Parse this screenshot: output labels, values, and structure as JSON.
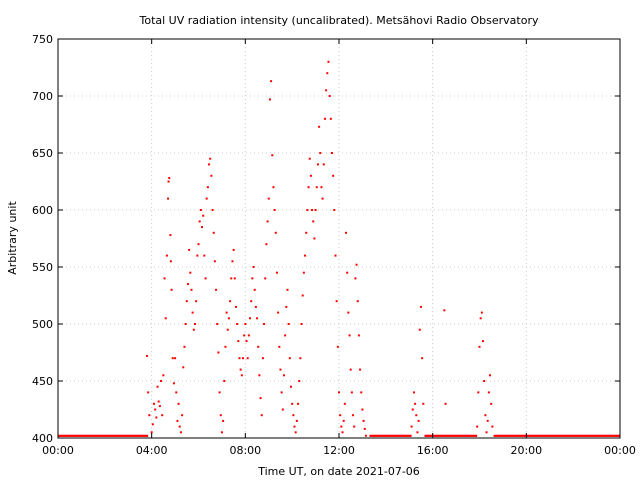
{
  "chart_data": {
    "type": "scatter",
    "title": "Total UV radiation intensity (uncalibrated). Metsähovi Radio Observatory",
    "xlabel": "Time UT, on date 2021-07-06",
    "ylabel": "Arbitrary unit",
    "xlim": [
      0,
      24
    ],
    "ylim": [
      400,
      750
    ],
    "x_unit": "hours UT",
    "x_ticks": [
      0,
      4,
      8,
      12,
      16,
      20,
      24
    ],
    "x_tick_labels": [
      "00:00",
      "04:00",
      "08:00",
      "12:00",
      "16:00",
      "20:00",
      "00:00"
    ],
    "y_ticks": [
      400,
      450,
      500,
      550,
      600,
      650,
      700,
      750
    ],
    "y_tick_labels": [
      "400",
      "450",
      "500",
      "550",
      "600",
      "650",
      "700",
      "750"
    ],
    "grid": true,
    "marker_color": "#ff0000",
    "baseline_value": 402,
    "baseline_segments": [
      [
        0,
        3.85
      ],
      [
        13.3,
        15.1
      ],
      [
        15.65,
        17.9
      ],
      [
        18.6,
        24
      ]
    ],
    "series": [
      {
        "name": "",
        "points": [
          [
            3.8,
            472
          ],
          [
            3.85,
            440
          ],
          [
            3.9,
            420
          ],
          [
            4.0,
            405
          ],
          [
            4.05,
            412
          ],
          [
            4.1,
            430
          ],
          [
            4.15,
            425
          ],
          [
            4.2,
            418
          ],
          [
            4.25,
            445
          ],
          [
            4.3,
            432
          ],
          [
            4.35,
            428
          ],
          [
            4.4,
            450
          ],
          [
            4.45,
            420
          ],
          [
            4.5,
            455
          ],
          [
            4.55,
            540
          ],
          [
            4.6,
            505
          ],
          [
            4.65,
            560
          ],
          [
            4.7,
            610
          ],
          [
            4.72,
            625
          ],
          [
            4.75,
            628
          ],
          [
            4.8,
            578
          ],
          [
            4.82,
            555
          ],
          [
            4.85,
            530
          ],
          [
            4.9,
            470
          ],
          [
            4.95,
            448
          ],
          [
            5.0,
            470
          ],
          [
            5.05,
            440
          ],
          [
            5.1,
            415
          ],
          [
            5.15,
            430
          ],
          [
            5.2,
            410
          ],
          [
            5.25,
            405
          ],
          [
            5.3,
            420
          ],
          [
            5.35,
            462
          ],
          [
            5.4,
            480
          ],
          [
            5.45,
            500
          ],
          [
            5.5,
            520
          ],
          [
            5.55,
            535
          ],
          [
            5.6,
            565
          ],
          [
            5.65,
            545
          ],
          [
            5.7,
            530
          ],
          [
            5.75,
            510
          ],
          [
            5.8,
            495
          ],
          [
            5.85,
            500
          ],
          [
            5.9,
            520
          ],
          [
            5.95,
            560
          ],
          [
            6.0,
            570
          ],
          [
            6.05,
            590
          ],
          [
            6.1,
            600
          ],
          [
            6.15,
            585
          ],
          [
            6.2,
            595
          ],
          [
            6.25,
            560
          ],
          [
            6.3,
            540
          ],
          [
            6.35,
            610
          ],
          [
            6.4,
            620
          ],
          [
            6.45,
            640
          ],
          [
            6.5,
            645
          ],
          [
            6.55,
            630
          ],
          [
            6.6,
            600
          ],
          [
            6.65,
            580
          ],
          [
            6.7,
            555
          ],
          [
            6.75,
            530
          ],
          [
            6.8,
            500
          ],
          [
            6.85,
            475
          ],
          [
            6.9,
            440
          ],
          [
            6.95,
            420
          ],
          [
            7.0,
            405
          ],
          [
            7.05,
            415
          ],
          [
            7.1,
            450
          ],
          [
            7.15,
            480
          ],
          [
            7.2,
            510
          ],
          [
            7.25,
            495
          ],
          [
            7.3,
            505
          ],
          [
            7.35,
            520
          ],
          [
            7.4,
            540
          ],
          [
            7.45,
            555
          ],
          [
            7.5,
            565
          ],
          [
            7.55,
            540
          ],
          [
            7.6,
            515
          ],
          [
            7.65,
            500
          ],
          [
            7.7,
            485
          ],
          [
            7.75,
            470
          ],
          [
            7.8,
            460
          ],
          [
            7.85,
            455
          ],
          [
            7.9,
            470
          ],
          [
            7.95,
            490
          ],
          [
            8.0,
            500
          ],
          [
            8.05,
            485
          ],
          [
            8.1,
            470
          ],
          [
            8.15,
            490
          ],
          [
            8.2,
            505
          ],
          [
            8.25,
            520
          ],
          [
            8.3,
            540
          ],
          [
            8.35,
            550
          ],
          [
            8.4,
            530
          ],
          [
            8.45,
            515
          ],
          [
            8.5,
            505
          ],
          [
            8.55,
            480
          ],
          [
            8.6,
            455
          ],
          [
            8.65,
            435
          ],
          [
            8.7,
            420
          ],
          [
            8.75,
            470
          ],
          [
            8.8,
            500
          ],
          [
            8.85,
            540
          ],
          [
            8.9,
            570
          ],
          [
            8.95,
            590
          ],
          [
            9.0,
            610
          ],
          [
            9.05,
            697
          ],
          [
            9.1,
            713
          ],
          [
            9.15,
            648
          ],
          [
            9.2,
            620
          ],
          [
            9.25,
            600
          ],
          [
            9.3,
            580
          ],
          [
            9.35,
            545
          ],
          [
            9.4,
            510
          ],
          [
            9.45,
            480
          ],
          [
            9.5,
            460
          ],
          [
            9.55,
            440
          ],
          [
            9.6,
            425
          ],
          [
            9.65,
            455
          ],
          [
            9.7,
            490
          ],
          [
            9.75,
            515
          ],
          [
            9.8,
            530
          ],
          [
            9.85,
            500
          ],
          [
            9.9,
            470
          ],
          [
            9.95,
            445
          ],
          [
            10.0,
            430
          ],
          [
            10.05,
            420
          ],
          [
            10.1,
            410
          ],
          [
            10.15,
            405
          ],
          [
            10.2,
            415
          ],
          [
            10.25,
            430
          ],
          [
            10.3,
            450
          ],
          [
            10.35,
            470
          ],
          [
            10.4,
            500
          ],
          [
            10.45,
            525
          ],
          [
            10.5,
            545
          ],
          [
            10.55,
            560
          ],
          [
            10.6,
            580
          ],
          [
            10.65,
            600
          ],
          [
            10.7,
            620
          ],
          [
            10.75,
            645
          ],
          [
            10.8,
            630
          ],
          [
            10.85,
            600
          ],
          [
            10.9,
            590
          ],
          [
            10.95,
            575
          ],
          [
            11.0,
            600
          ],
          [
            11.05,
            620
          ],
          [
            11.1,
            640
          ],
          [
            11.15,
            673
          ],
          [
            11.2,
            650
          ],
          [
            11.25,
            620
          ],
          [
            11.3,
            610
          ],
          [
            11.35,
            640
          ],
          [
            11.4,
            680
          ],
          [
            11.45,
            705
          ],
          [
            11.5,
            720
          ],
          [
            11.55,
            730
          ],
          [
            11.6,
            700
          ],
          [
            11.65,
            680
          ],
          [
            11.7,
            650
          ],
          [
            11.75,
            630
          ],
          [
            11.8,
            600
          ],
          [
            11.85,
            560
          ],
          [
            11.9,
            520
          ],
          [
            11.95,
            480
          ],
          [
            12.0,
            440
          ],
          [
            12.05,
            420
          ],
          [
            12.1,
            410
          ],
          [
            12.15,
            405
          ],
          [
            12.2,
            415
          ],
          [
            12.25,
            430
          ],
          [
            12.3,
            580
          ],
          [
            12.35,
            545
          ],
          [
            12.4,
            510
          ],
          [
            12.45,
            490
          ],
          [
            12.5,
            460
          ],
          [
            12.55,
            440
          ],
          [
            12.6,
            420
          ],
          [
            12.65,
            410
          ],
          [
            12.7,
            540
          ],
          [
            12.75,
            552
          ],
          [
            12.8,
            520
          ],
          [
            12.85,
            490
          ],
          [
            12.9,
            460
          ],
          [
            12.95,
            440
          ],
          [
            13.0,
            425
          ],
          [
            13.05,
            415
          ],
          [
            13.1,
            408
          ],
          [
            13.15,
            402
          ],
          [
            15.1,
            410
          ],
          [
            15.15,
            425
          ],
          [
            15.2,
            440
          ],
          [
            15.25,
            430
          ],
          [
            15.3,
            420
          ],
          [
            15.35,
            405
          ],
          [
            15.4,
            415
          ],
          [
            15.45,
            495
          ],
          [
            15.5,
            515
          ],
          [
            15.55,
            470
          ],
          [
            15.6,
            430
          ],
          [
            16.5,
            512
          ],
          [
            16.55,
            430
          ],
          [
            17.9,
            410
          ],
          [
            17.95,
            440
          ],
          [
            18.0,
            480
          ],
          [
            18.05,
            505
          ],
          [
            18.1,
            510
          ],
          [
            18.15,
            485
          ],
          [
            18.2,
            450
          ],
          [
            18.25,
            420
          ],
          [
            18.3,
            405
          ],
          [
            18.35,
            415
          ],
          [
            18.4,
            440
          ],
          [
            18.45,
            455
          ],
          [
            18.5,
            430
          ],
          [
            18.55,
            410
          ]
        ]
      }
    ]
  }
}
